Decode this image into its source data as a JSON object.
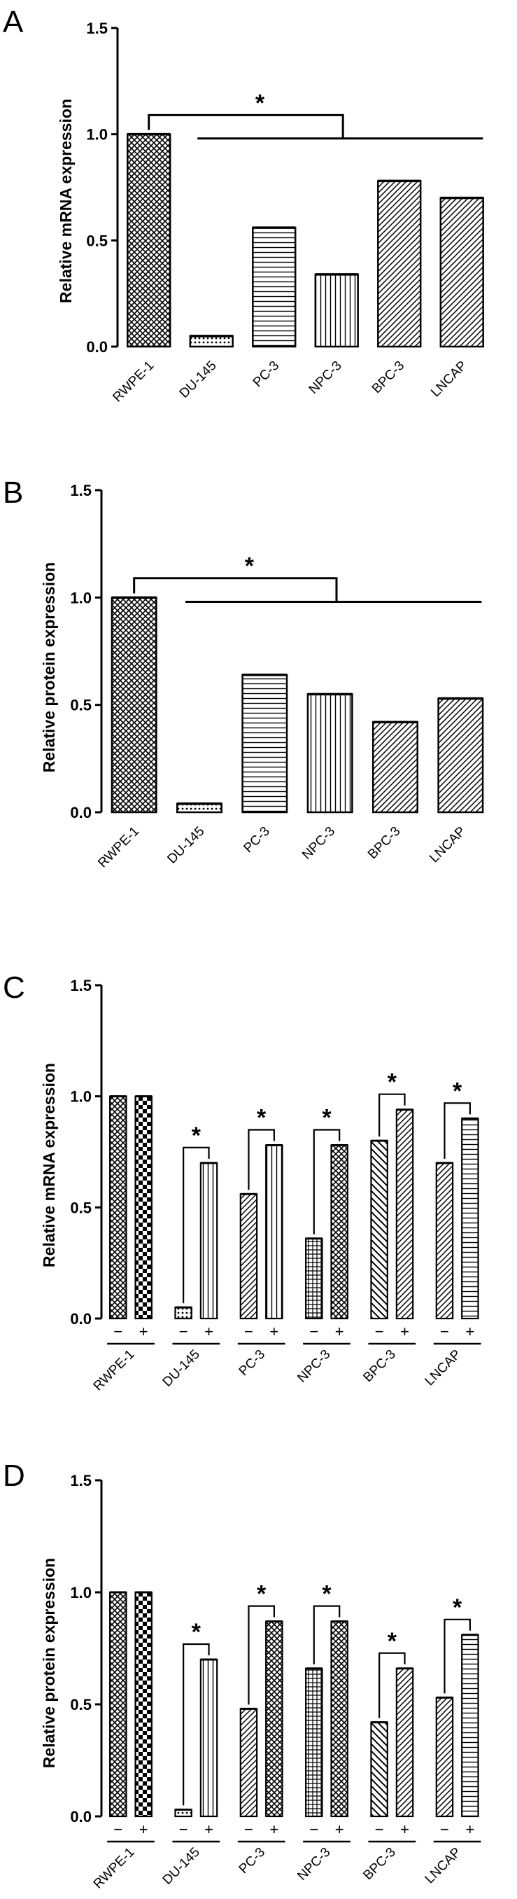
{
  "figure": {
    "background": "#ffffff",
    "ink": "#000000"
  },
  "chart_data": [
    {
      "panel": "A",
      "type": "bar",
      "ylabel": "Relative mRNA expression",
      "ylim": [
        0,
        1.5
      ],
      "yticks": [
        "0.0",
        "0.5",
        "1.0",
        "1.5"
      ],
      "categories": [
        "RWPE-1",
        "DU-145",
        "PC-3",
        "NPC-3",
        "BPC-3",
        "LNCAP"
      ],
      "values": [
        1.0,
        0.05,
        0.56,
        0.34,
        0.78,
        0.7
      ],
      "patterns": [
        "crosshatch",
        "dots",
        "hlines",
        "vlines",
        "diag",
        "diag"
      ],
      "significance": {
        "symbol": "*",
        "reference": "RWPE-1",
        "compared": [
          "DU-145",
          "PC-3",
          "NPC-3",
          "BPC-3",
          "LNCAP"
        ]
      }
    },
    {
      "panel": "B",
      "type": "bar",
      "ylabel": "Relative protein expression",
      "ylim": [
        0,
        1.5
      ],
      "yticks": [
        "0.0",
        "0.5",
        "1.0",
        "1.5"
      ],
      "categories": [
        "RWPE-1",
        "DU-145",
        "PC-3",
        "NPC-3",
        "BPC-3",
        "LNCAP"
      ],
      "values": [
        1.0,
        0.04,
        0.64,
        0.55,
        0.42,
        0.53
      ],
      "patterns": [
        "crosshatch",
        "dots",
        "hlines",
        "vlines",
        "diag",
        "diag"
      ],
      "significance": {
        "symbol": "*",
        "reference": "RWPE-1",
        "compared": [
          "DU-145",
          "PC-3",
          "NPC-3",
          "BPC-3",
          "LNCAP"
        ]
      }
    },
    {
      "panel": "C",
      "type": "bar",
      "ylabel": "Relative mRNA expression",
      "ylim": [
        0,
        1.5
      ],
      "yticks": [
        "0.0",
        "0.5",
        "1.0",
        "1.5"
      ],
      "categories": [
        "RWPE-1",
        "DU-145",
        "PC-3",
        "NPC-3",
        "BPC-3",
        "LNCAP"
      ],
      "conditions": [
        "−",
        "+"
      ],
      "series": [
        {
          "values": [
            1.0,
            0.05,
            0.56,
            0.36,
            0.8,
            0.7
          ]
        },
        {
          "values": [
            1.0,
            0.7,
            0.78,
            0.78,
            0.94,
            0.9
          ]
        }
      ],
      "patterns": [
        [
          "crosshatch",
          "checker"
        ],
        [
          "dots",
          "vlines"
        ],
        [
          "diag",
          "vlines"
        ],
        [
          "grid",
          "crosshatch"
        ],
        [
          "antidiag",
          "diag"
        ],
        [
          "diag",
          "hlines"
        ]
      ],
      "significance": {
        "symbol": "*",
        "pairs": [
          "DU-145",
          "PC-3",
          "NPC-3",
          "BPC-3",
          "LNCAP"
        ]
      }
    },
    {
      "panel": "D",
      "type": "bar",
      "ylabel": "Relative protein expression",
      "ylim": [
        0,
        1.5
      ],
      "yticks": [
        "0.0",
        "0.5",
        "1.0",
        "1.5"
      ],
      "categories": [
        "RWPE-1",
        "DU-145",
        "PC-3",
        "NPC-3",
        "BPC-3",
        "LNCAP"
      ],
      "conditions": [
        "−",
        "+"
      ],
      "series": [
        {
          "values": [
            1.0,
            0.03,
            0.48,
            0.66,
            0.42,
            0.53
          ]
        },
        {
          "values": [
            1.0,
            0.7,
            0.87,
            0.87,
            0.66,
            0.81
          ]
        }
      ],
      "patterns": [
        [
          "crosshatch",
          "checker"
        ],
        [
          "dots",
          "vlines"
        ],
        [
          "diag",
          "crosshatch"
        ],
        [
          "grid",
          "crosshatch"
        ],
        [
          "antidiag",
          "diag"
        ],
        [
          "diag",
          "hlines"
        ]
      ],
      "significance": {
        "symbol": "*",
        "pairs": [
          "DU-145",
          "PC-3",
          "NPC-3",
          "BPC-3",
          "LNCAP"
        ]
      }
    }
  ]
}
